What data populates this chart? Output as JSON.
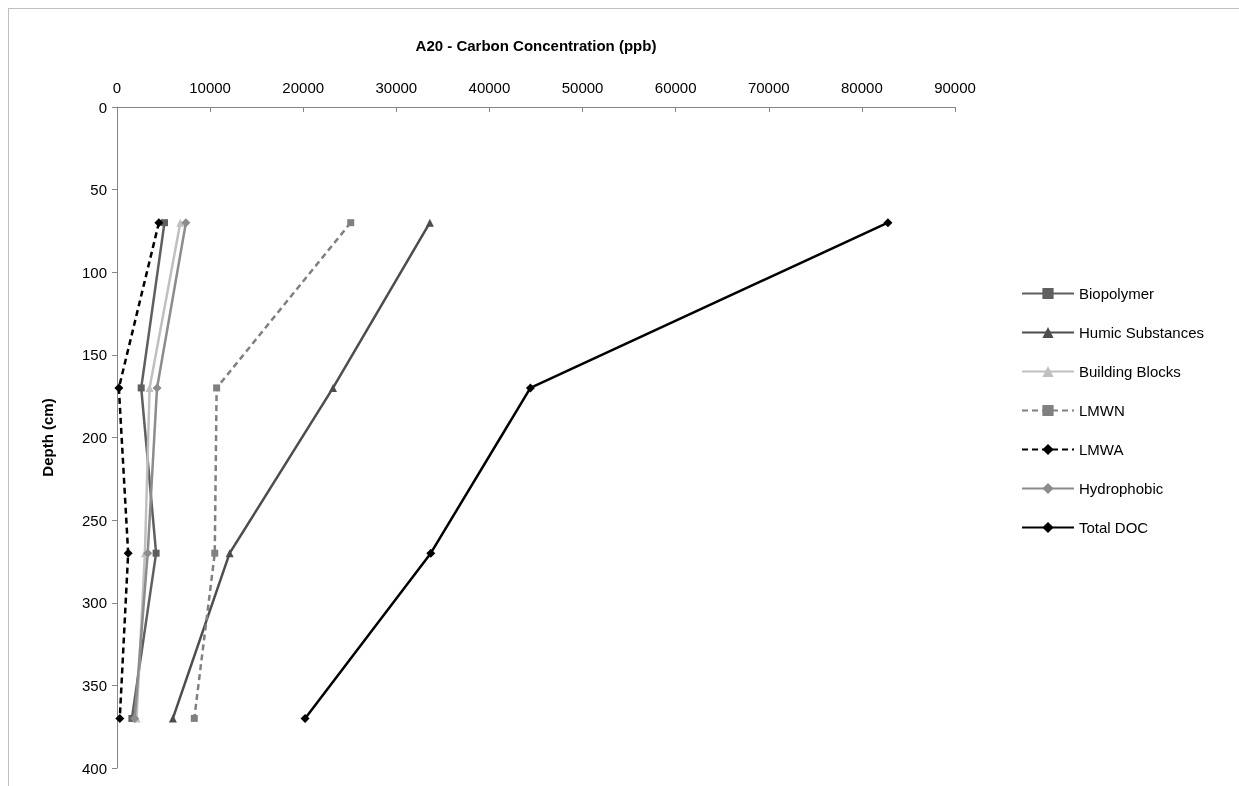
{
  "chart_data": {
    "type": "line",
    "xlabel": "A20 - Carbon Concentration (ppb)",
    "ylabel": "Depth (cm)",
    "xlim": [
      0,
      90000
    ],
    "xticks": [
      0,
      10000,
      20000,
      30000,
      40000,
      50000,
      60000,
      70000,
      80000,
      90000
    ],
    "ylim": [
      400,
      0
    ],
    "yticks": [
      0,
      50,
      100,
      150,
      200,
      250,
      300,
      350,
      400
    ],
    "legend": "right",
    "series": [
      {
        "name": "Biopolymer",
        "color": "#5f5f5f",
        "marker": "square",
        "line_style": "solid",
        "x": [
          5100,
          2600,
          4200,
          1600
        ],
        "values": [
          70,
          170,
          270,
          370
        ]
      },
      {
        "name": "Humic Substances",
        "color": "#4d4d4d",
        "marker": "triangle",
        "line_style": "solid",
        "x": [
          33600,
          23200,
          12100,
          6000
        ],
        "values": [
          70,
          170,
          270,
          370
        ]
      },
      {
        "name": "Building Blocks",
        "color": "#c0c0c0",
        "marker": "triangle",
        "line_style": "solid",
        "x": [
          6800,
          3500,
          3000,
          2100
        ],
        "values": [
          70,
          170,
          270,
          370
        ]
      },
      {
        "name": "LMWN",
        "color": "#808080",
        "marker": "square",
        "line_style": "dashed",
        "x": [
          25100,
          10700,
          10500,
          8300
        ],
        "values": [
          70,
          170,
          270,
          370
        ]
      },
      {
        "name": "LMWA",
        "color": "#000000",
        "marker": "diamond",
        "line_style": "dashed",
        "x": [
          4500,
          200,
          1200,
          300
        ],
        "values": [
          70,
          170,
          270,
          370
        ]
      },
      {
        "name": "Hydrophobic",
        "color": "#8c8c8c",
        "marker": "diamond",
        "line_style": "solid",
        "x": [
          7400,
          4300,
          3300,
          1900
        ],
        "values": [
          70,
          170,
          270,
          370
        ]
      },
      {
        "name": "Total DOC",
        "color": "#000000",
        "marker": "diamond",
        "line_style": "solid",
        "x": [
          82800,
          44400,
          33700,
          20200
        ],
        "values": [
          70,
          170,
          270,
          370
        ]
      }
    ]
  }
}
